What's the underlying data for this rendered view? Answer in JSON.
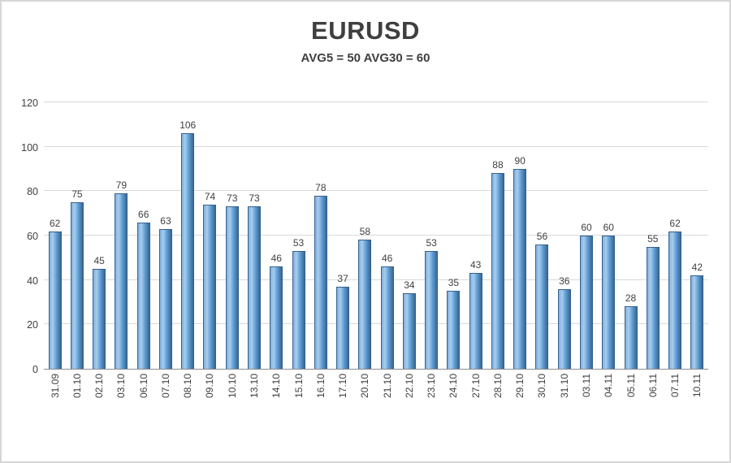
{
  "chart": {
    "title": "EURUSD",
    "subtitle": "AVG5 = 50 AVG30 = 60"
  },
  "chart_data": {
    "type": "bar",
    "title": "EURUSD",
    "subtitle": "AVG5 = 50 AVG30 = 60",
    "xlabel": "",
    "ylabel": "",
    "ylim": [
      0,
      120
    ],
    "ytick_step": 20,
    "yticks": [
      0,
      20,
      40,
      60,
      80,
      100,
      120
    ],
    "grid": true,
    "legend": false,
    "value_labels_shown": true,
    "categories": [
      "31.09",
      "01.10",
      "02.10",
      "03.10",
      "06.10",
      "07.10",
      "08.10",
      "09.10",
      "10.10",
      "13.10",
      "14.10",
      "15.10",
      "16.10",
      "17.10",
      "20.10",
      "21.10",
      "22.10",
      "23.10",
      "24.10",
      "27.10",
      "28.10",
      "29.10",
      "30.10",
      "31.10",
      "03.11",
      "04.11",
      "05.11",
      "06.11",
      "07.11",
      "10.11"
    ],
    "values": [
      62,
      75,
      45,
      79,
      66,
      63,
      106,
      74,
      73,
      73,
      46,
      53,
      78,
      37,
      58,
      46,
      34,
      53,
      35,
      43,
      88,
      90,
      56,
      36,
      60,
      60,
      28,
      55,
      62,
      42
    ],
    "colors": {
      "bar_gradient": [
        "#7fb0dd",
        "#a8cdee",
        "#5d9bd3",
        "#3a678f"
      ],
      "bar_border": "#35618e",
      "gridline": "#d9d9d9",
      "axis_line": "#8f8f8f",
      "text": "#404040",
      "frame_border": "#d6d6d6"
    }
  }
}
